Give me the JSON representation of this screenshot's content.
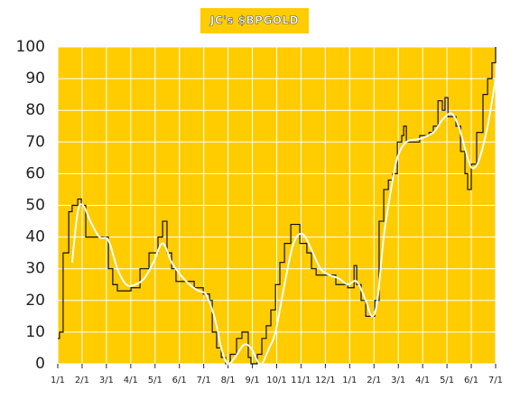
{
  "chart_data": {
    "type": "line",
    "title": "JC's $BPGOLD",
    "background": "#ffcc00",
    "grid": true,
    "xlim": [
      0,
      18
    ],
    "ylim": [
      0,
      100
    ],
    "yticks": [
      0,
      10,
      20,
      30,
      40,
      50,
      60,
      70,
      80,
      90,
      100
    ],
    "xticks": [
      {
        "value": 0,
        "label": "1/1"
      },
      {
        "value": 1,
        "label": "2/1"
      },
      {
        "value": 2,
        "label": "3/1"
      },
      {
        "value": 3,
        "label": "4/1"
      },
      {
        "value": 4,
        "label": "5/1"
      },
      {
        "value": 5,
        "label": "6/1"
      },
      {
        "value": 6,
        "label": "7/1"
      },
      {
        "value": 7,
        "label": "8/1"
      },
      {
        "value": 8,
        "label": "9/1"
      },
      {
        "value": 9,
        "label": "10/1"
      },
      {
        "value": 10,
        "label": "11/1"
      },
      {
        "value": 11,
        "label": "12/1"
      },
      {
        "value": 12,
        "label": "1/1"
      },
      {
        "value": 13,
        "label": "2/1"
      },
      {
        "value": 14,
        "label": "3/1"
      },
      {
        "value": 15,
        "label": "4/1"
      },
      {
        "value": 16,
        "label": "5/1"
      },
      {
        "value": 17,
        "label": "6/1"
      },
      {
        "value": 18,
        "label": "7/1"
      }
    ],
    "series": [
      {
        "color": "#111111",
        "drawstyle": "steps",
        "x": [
          0,
          0.07,
          0.22,
          0.45,
          0.59,
          0.82,
          0.97,
          1.15,
          1.71,
          2.08,
          2.26,
          2.45,
          3.01,
          3.38,
          3.75,
          4.12,
          4.31,
          4.49,
          4.68,
          4.86,
          5.42,
          5.61,
          5.98,
          6.24,
          6.35,
          6.53,
          6.72,
          6.9,
          7.09,
          7.35,
          7.57,
          7.72,
          7.83,
          7.94,
          8.2,
          8.39,
          8.57,
          8.76,
          8.95,
          9.13,
          9.32,
          9.58,
          9.8,
          9.95,
          10.24,
          10.43,
          10.62,
          11.17,
          11.43,
          11.92,
          12.18,
          12.29,
          12.47,
          12.66,
          12.84,
          13.03,
          13.21,
          13.4,
          13.59,
          13.77,
          13.96,
          14.14,
          14.22,
          14.33,
          14.88,
          15.07,
          15.26,
          15.44,
          15.63,
          15.81,
          15.92,
          16.04,
          16.37,
          16.56,
          16.74,
          16.85,
          17,
          17.22,
          17.48,
          17.67,
          17.85,
          18
        ],
        "values": [
          8,
          10,
          35,
          48,
          50,
          52,
          50,
          40,
          40,
          30,
          25,
          23,
          24,
          30,
          35,
          40,
          45,
          35,
          30,
          26,
          26,
          24,
          22,
          20,
          10,
          5,
          2,
          0,
          3,
          8,
          10,
          10,
          2,
          0,
          3,
          8,
          12,
          17,
          25,
          32,
          38,
          44,
          44,
          38,
          35,
          30,
          28,
          28,
          25,
          24,
          31,
          25,
          20,
          15,
          15,
          20,
          45,
          55,
          58,
          60,
          70,
          72,
          75,
          70,
          72,
          72,
          73,
          75,
          83,
          80,
          84,
          78,
          75,
          67,
          60,
          55,
          63,
          73,
          85,
          90,
          95,
          100
        ]
      },
      {
        "color": "#ffffff",
        "drawstyle": "smooth",
        "x": [
          0.59,
          0.82,
          1.04,
          1.34,
          1.71,
          2.08,
          2.45,
          2.82,
          3.19,
          3.56,
          3.93,
          4.31,
          4.68,
          5.05,
          5.42,
          5.79,
          6.09,
          6.35,
          6.53,
          6.72,
          6.98,
          7.28,
          7.65,
          7.94,
          8.2,
          8.39,
          8.69,
          8.95,
          9.32,
          9.69,
          10.06,
          10.43,
          10.8,
          11.17,
          11.54,
          11.92,
          12.29,
          12.66,
          12.92,
          13.14,
          13.4,
          13.7,
          13.96,
          14.33,
          14.88,
          15.44,
          15.81,
          16.18,
          16.48,
          16.74,
          17,
          17.3,
          17.67,
          18
        ],
        "values": [
          32,
          48,
          50,
          45,
          40,
          39,
          30,
          25,
          25,
          27,
          32,
          38,
          32,
          28,
          25,
          23,
          22,
          17,
          12,
          5,
          0,
          2,
          6,
          5,
          1,
          0,
          5,
          10,
          25,
          38,
          41,
          36,
          30,
          28,
          27,
          25,
          26,
          20,
          15,
          20,
          40,
          55,
          65,
          70,
          71,
          73,
          77,
          79,
          75,
          68,
          62,
          64,
          75,
          90
        ]
      }
    ]
  }
}
